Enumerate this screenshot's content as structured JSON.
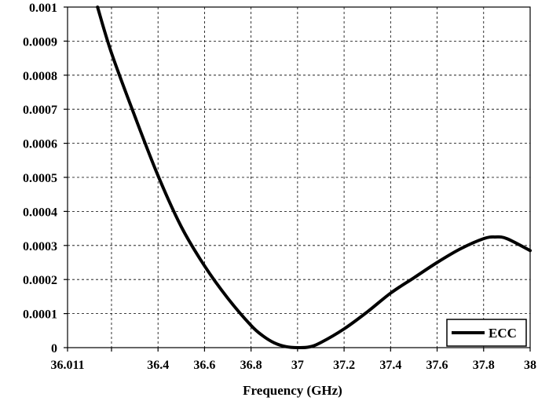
{
  "chart_data": {
    "type": "line",
    "title": "",
    "xlabel": "Frequency (GHz)",
    "ylabel": "",
    "xlim": [
      36.011,
      38
    ],
    "ylim": [
      0,
      0.001
    ],
    "x_ticks": [
      36.011,
      36.2,
      36.4,
      36.6,
      36.8,
      37,
      37.2,
      37.4,
      37.6,
      37.8,
      38
    ],
    "x_tick_labels": [
      "36.011",
      "",
      "36.4",
      "36.6",
      "36.8",
      "37",
      "37.2",
      "37.4",
      "37.6",
      "37.8",
      "38"
    ],
    "y_ticks": [
      0,
      0.0001,
      0.0002,
      0.0003,
      0.0004,
      0.0005,
      0.0006,
      0.0007,
      0.0008,
      0.0009,
      0.001
    ],
    "y_tick_labels": [
      "0",
      "0.0001",
      "0.0002",
      "0.0003",
      "0.0004",
      "0.0005",
      "0.0006",
      "0.0007",
      "0.0008",
      "0.0009",
      "0.001"
    ],
    "grid": true,
    "legend_position": "bottom-right",
    "series": [
      {
        "name": "ECC",
        "color": "#000000",
        "x": [
          36.14,
          36.2,
          36.3,
          36.4,
          36.5,
          36.6,
          36.7,
          36.8,
          36.85,
          36.9,
          36.95,
          37.0,
          37.05,
          37.1,
          37.2,
          37.3,
          37.4,
          37.5,
          37.6,
          37.7,
          37.8,
          37.85,
          37.9,
          38.0
        ],
        "y": [
          0.001,
          0.000865,
          0.00068,
          0.000505,
          0.000355,
          0.00024,
          0.000145,
          6.5e-05,
          3.5e-05,
          1.4e-05,
          3e-06,
          0.0,
          2e-06,
          1.5e-05,
          5.5e-05,
          0.000105,
          0.00016,
          0.000205,
          0.00025,
          0.00029,
          0.00032,
          0.000325,
          0.00032,
          0.000285
        ]
      }
    ]
  }
}
